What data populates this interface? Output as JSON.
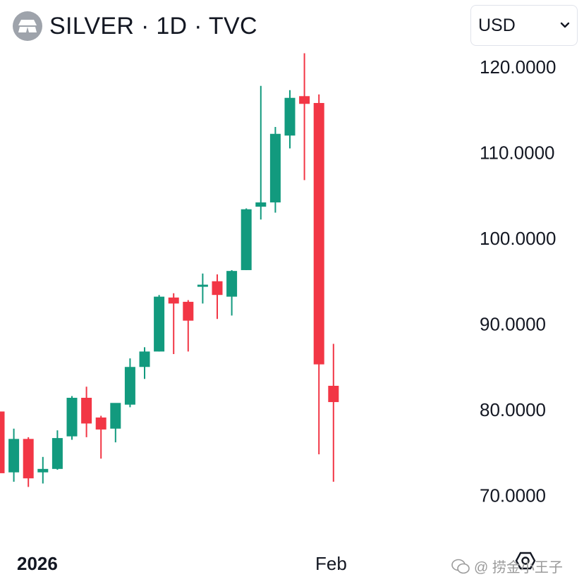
{
  "header": {
    "title": "SILVER · 1D · TVC",
    "logo_icon": "silver-bars-icon"
  },
  "currency_selector": {
    "value": "USD",
    "icon": "chevron-down-icon"
  },
  "watermark": {
    "text": "@ 捞金小王子",
    "icon": "wechat-icon"
  },
  "colors": {
    "up": "#129a7e",
    "down": "#f23645",
    "text": "#131722"
  },
  "chart_data": {
    "type": "candlestick",
    "price_axis": {
      "ticks": [
        "120.0000",
        "110.0000",
        "100.0000",
        "90.0000",
        "80.0000",
        "70.0000"
      ],
      "tick_values": [
        120,
        110,
        100,
        90,
        80,
        70
      ],
      "position": "right"
    },
    "time_axis": {
      "labels": [
        {
          "text": "2026",
          "bold": true
        },
        {
          "text": "Feb",
          "bold": false
        }
      ]
    },
    "grid": false,
    "candles": [
      {
        "o": 79.8,
        "h": 79.8,
        "l": 72.5,
        "c": 72.6
      },
      {
        "o": 72.7,
        "h": 77.8,
        "l": 71.6,
        "c": 76.6
      },
      {
        "o": 76.6,
        "h": 76.8,
        "l": 71.0,
        "c": 72.0
      },
      {
        "o": 72.7,
        "h": 74.5,
        "l": 71.4,
        "c": 73.1
      },
      {
        "o": 73.1,
        "h": 77.6,
        "l": 73.0,
        "c": 76.7
      },
      {
        "o": 76.9,
        "h": 81.6,
        "l": 76.5,
        "c": 81.4
      },
      {
        "o": 81.4,
        "h": 82.7,
        "l": 76.8,
        "c": 78.4
      },
      {
        "o": 79.1,
        "h": 79.3,
        "l": 74.3,
        "c": 77.7
      },
      {
        "o": 77.8,
        "h": 80.4,
        "l": 76.2,
        "c": 80.8
      },
      {
        "o": 80.6,
        "h": 86.0,
        "l": 80.3,
        "c": 85.0
      },
      {
        "o": 85.0,
        "h": 87.3,
        "l": 83.6,
        "c": 86.8
      },
      {
        "o": 86.8,
        "h": 93.4,
        "l": 86.8,
        "c": 93.2
      },
      {
        "o": 93.1,
        "h": 93.6,
        "l": 86.5,
        "c": 92.4
      },
      {
        "o": 92.6,
        "h": 92.8,
        "l": 86.8,
        "c": 90.4
      },
      {
        "o": 94.5,
        "h": 95.9,
        "l": 92.4,
        "c": 94.6
      },
      {
        "o": 95.0,
        "h": 95.8,
        "l": 90.6,
        "c": 93.4
      },
      {
        "o": 93.2,
        "h": 96.3,
        "l": 91.0,
        "c": 96.2
      },
      {
        "o": 96.3,
        "h": 103.5,
        "l": 96.3,
        "c": 103.4
      },
      {
        "o": 103.7,
        "h": 117.8,
        "l": 102.2,
        "c": 104.2
      },
      {
        "o": 104.2,
        "h": 113.0,
        "l": 103.0,
        "c": 112.2
      },
      {
        "o": 112.0,
        "h": 117.3,
        "l": 110.5,
        "c": 116.4
      },
      {
        "o": 116.6,
        "h": 121.6,
        "l": 106.8,
        "c": 115.7
      },
      {
        "o": 115.8,
        "h": 116.8,
        "l": 74.8,
        "c": 85.3
      },
      {
        "o": 82.8,
        "h": 87.7,
        "l": 71.6,
        "c": 80.9
      }
    ]
  }
}
